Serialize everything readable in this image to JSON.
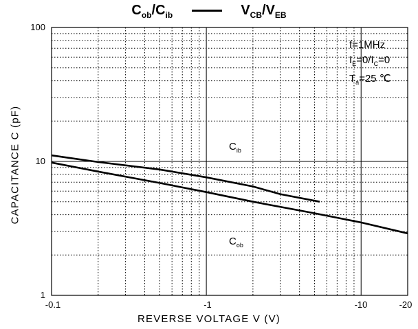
{
  "title": {
    "left_main": "C",
    "left_sub1": "ob",
    "left_slash": "/C",
    "left_sub2": "ib",
    "right_main": "V",
    "right_sub1": "CB",
    "right_slash": "/V",
    "right_sub2": "EB"
  },
  "conditions": {
    "freq": "f=1MHz",
    "line2_a": "I",
    "line2_a_sub": "E",
    "line2_b": "=0/I",
    "line2_b_sub": "C",
    "line2_c": "=0",
    "line3_a": "T",
    "line3_a_sub": "a",
    "line3_b": "=25 ℃"
  },
  "curve_labels": {
    "cib_main": "C",
    "cib_sub": "ib",
    "cob_main": "C",
    "cob_sub": "ob"
  },
  "chart_data": {
    "type": "line",
    "title": "Cob/Cib — VCB/VEB",
    "xlabel": "REVERSE VOLTAGE V (V)",
    "ylabel": "CAPACITANCE C (pF)",
    "x_scale": "log",
    "y_scale": "log",
    "xlim": [
      0.1,
      20
    ],
    "ylim": [
      1,
      100
    ],
    "x_tick_labels": [
      "-0.1",
      "-1",
      "-10",
      "-20"
    ],
    "x_tick_values": [
      0.1,
      1,
      10,
      20
    ],
    "y_tick_labels": [
      "1",
      "10",
      "100"
    ],
    "y_tick_values": [
      1,
      10,
      100
    ],
    "grid": true,
    "series": [
      {
        "name": "Cib",
        "x": [
          0.1,
          0.2,
          0.5,
          1,
          2,
          3,
          5.4
        ],
        "y": [
          11.1,
          9.9,
          8.7,
          7.6,
          6.5,
          5.7,
          5.0
        ]
      },
      {
        "name": "Cob",
        "x": [
          0.1,
          0.2,
          0.5,
          1,
          2,
          5,
          10,
          20
        ],
        "y": [
          9.8,
          8.4,
          6.9,
          5.9,
          5.0,
          4.1,
          3.5,
          2.9
        ]
      }
    ]
  }
}
